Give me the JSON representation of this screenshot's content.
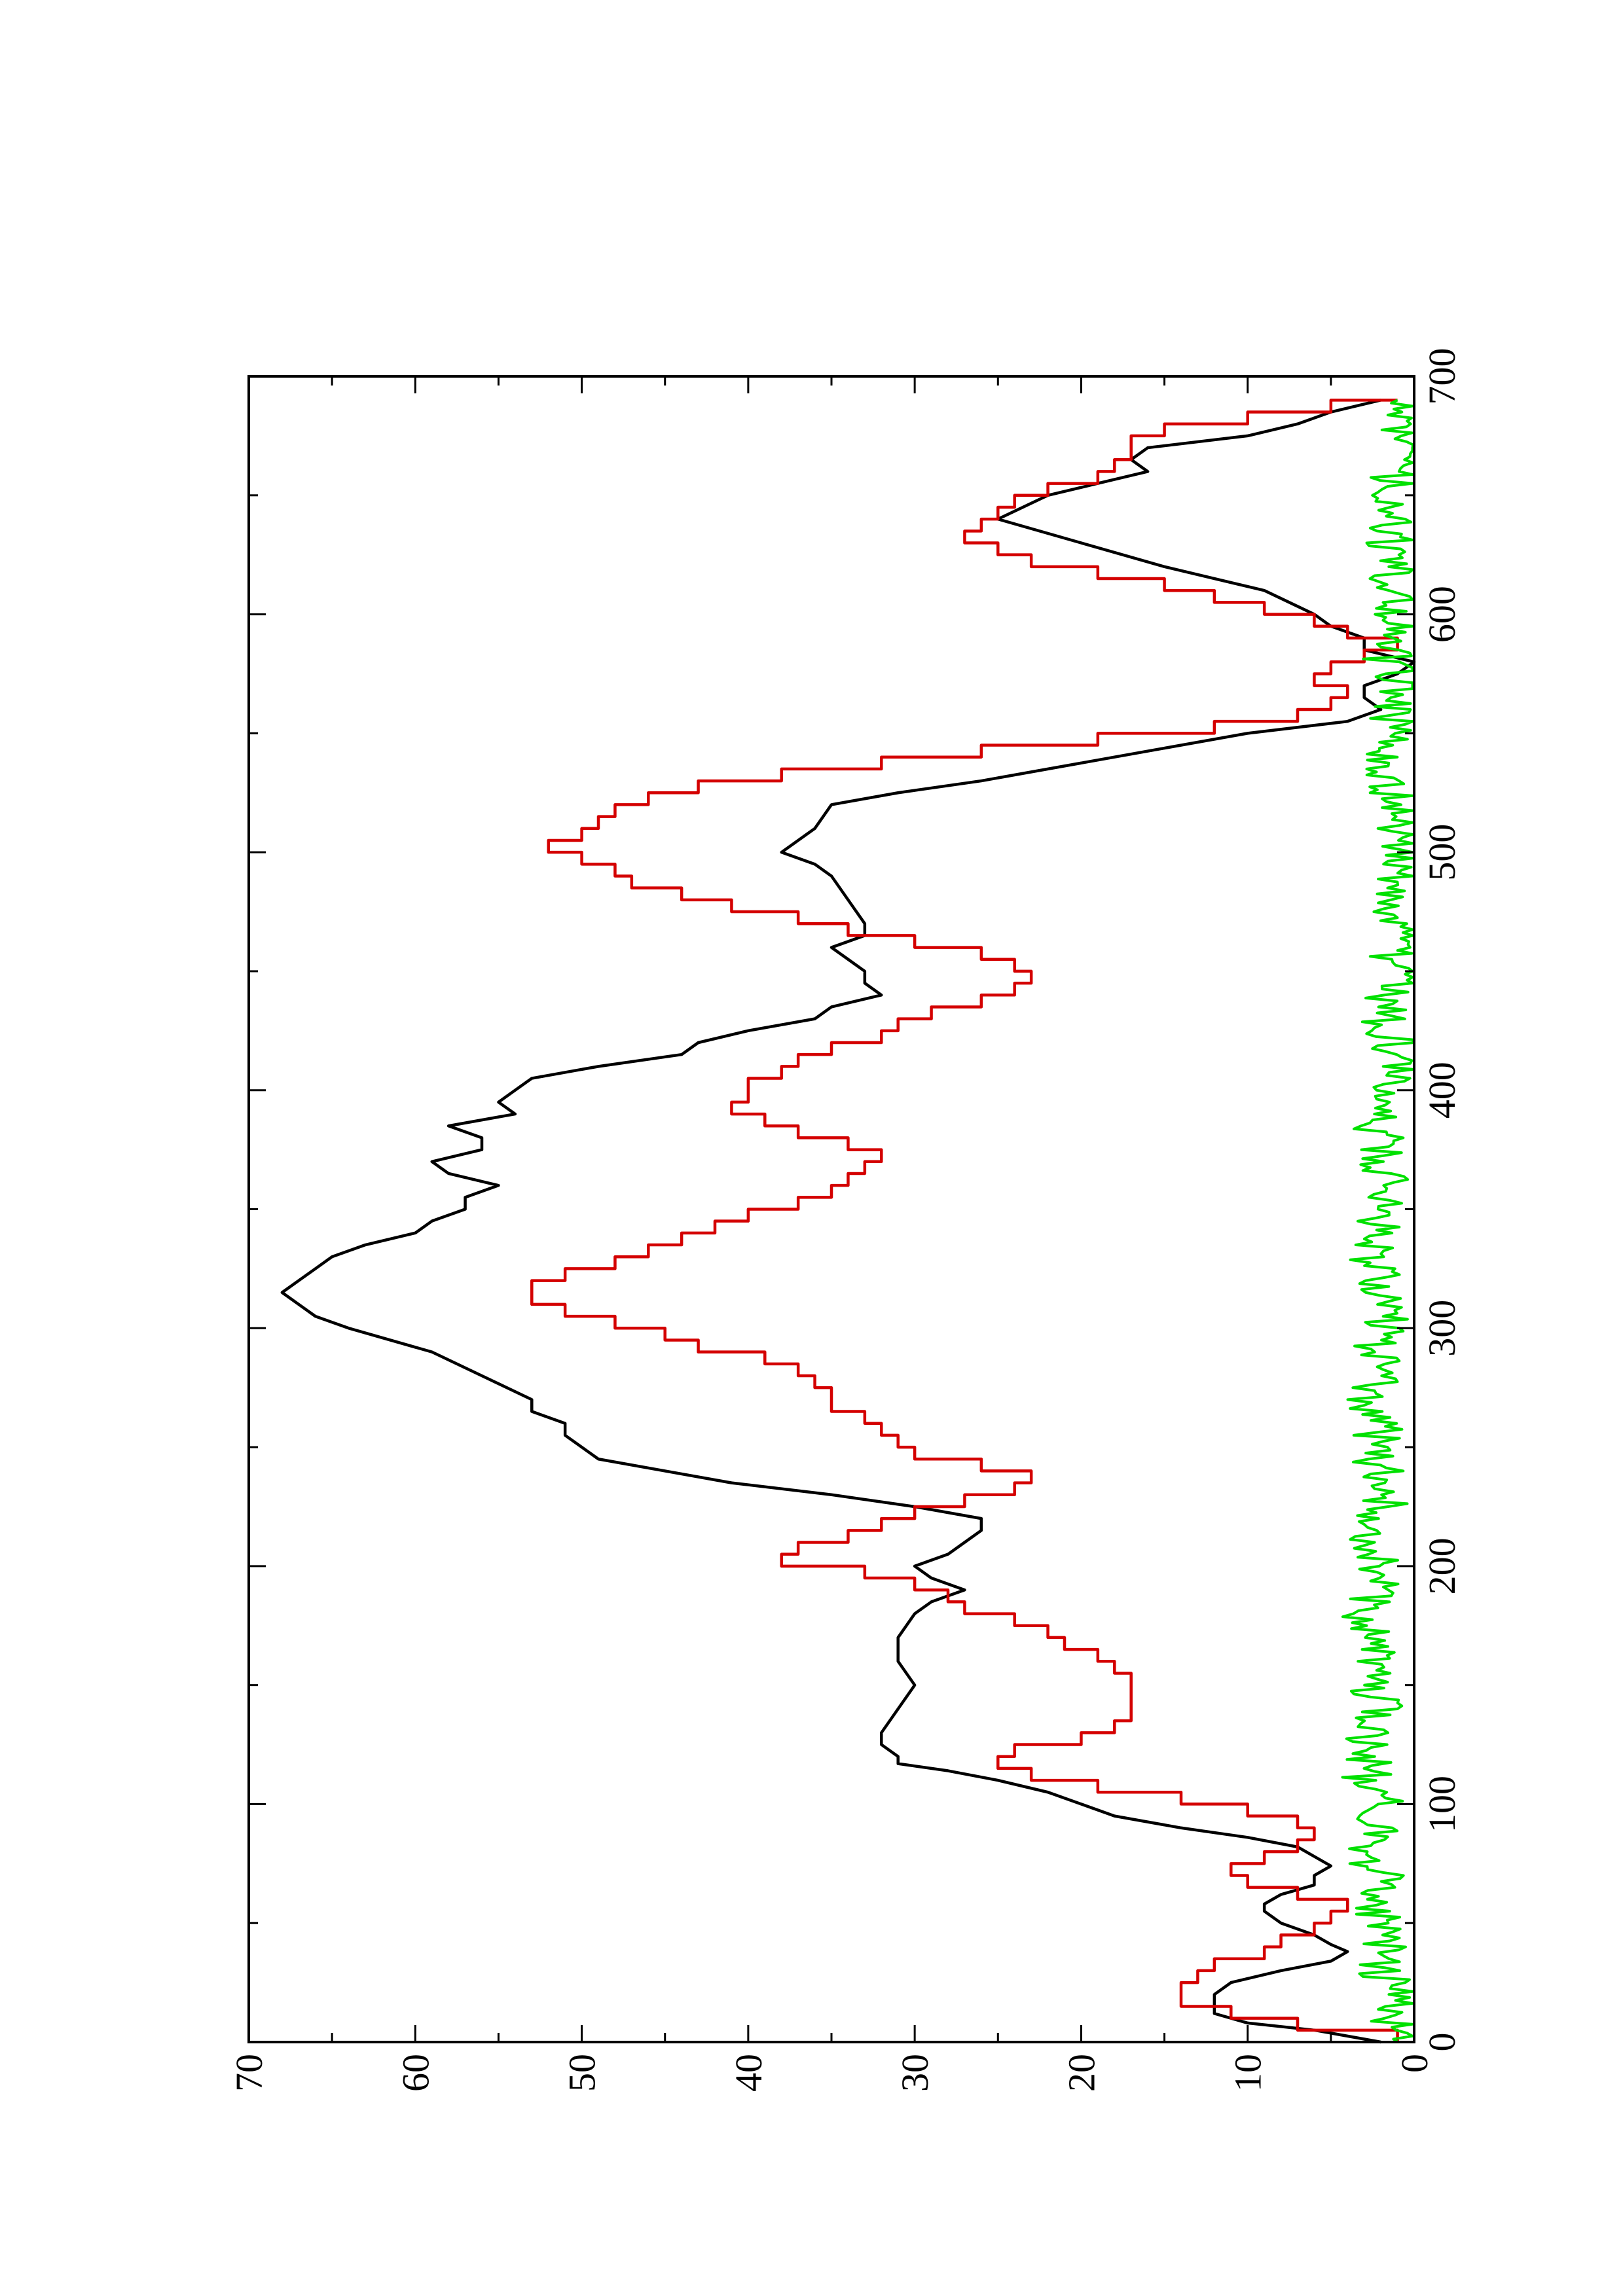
{
  "chart_data": {
    "type": "line",
    "title": "",
    "xlabel": "",
    "ylabel": "",
    "xlim": [
      0,
      700
    ],
    "ylim": [
      0,
      70
    ],
    "x_ticks": [
      0,
      100,
      200,
      300,
      400,
      500,
      600,
      700
    ],
    "y_ticks": [
      0,
      10,
      20,
      30,
      40,
      50,
      60,
      70
    ],
    "grid": false,
    "legend": "none",
    "orientation": "rotated 90 degrees counter-clockwise on the page",
    "series": [
      {
        "color": "#000000",
        "style": "smooth",
        "x": [
          0,
          5,
          8,
          12,
          15,
          20,
          25,
          30,
          34,
          38,
          41,
          45,
          50,
          55,
          58,
          62,
          66,
          70,
          74,
          78,
          82,
          86,
          90,
          95,
          100,
          105,
          110,
          114,
          117,
          120,
          125,
          130,
          140,
          150,
          160,
          170,
          180,
          185,
          190,
          195,
          200,
          205,
          210,
          215,
          220,
          225,
          230,
          235,
          240,
          245,
          250,
          255,
          260,
          265,
          270,
          280,
          290,
          300,
          305,
          310,
          315,
          320,
          325,
          330,
          335,
          340,
          345,
          350,
          355,
          360,
          365,
          370,
          375,
          380,
          385,
          390,
          395,
          400,
          405,
          410,
          415,
          420,
          425,
          430,
          435,
          440,
          445,
          450,
          455,
          460,
          465,
          470,
          480,
          490,
          495,
          500,
          510,
          520,
          525,
          530,
          540,
          550,
          555,
          560,
          565,
          570,
          575,
          580,
          585,
          590,
          595,
          600,
          610,
          620,
          630,
          640,
          650,
          655,
          660,
          665,
          670,
          675,
          680,
          685,
          690
        ],
        "y": [
          2,
          6,
          10,
          12,
          12,
          12,
          11,
          8,
          5,
          4,
          5,
          6,
          8,
          9,
          9,
          8,
          6,
          6,
          5,
          6,
          7,
          10,
          14,
          18,
          20,
          22,
          25,
          28,
          31,
          31,
          32,
          32,
          31,
          30,
          31,
          31,
          30,
          29,
          27,
          29,
          30,
          28,
          27,
          26,
          26,
          30,
          35,
          41,
          45,
          49,
          50,
          51,
          51,
          53,
          53,
          56,
          59,
          64,
          66,
          67,
          68,
          67,
          66,
          65,
          63,
          60,
          59,
          57,
          57,
          55,
          58,
          59,
          56,
          56,
          58,
          54,
          55,
          54,
          53,
          49,
          44,
          43,
          40,
          36,
          35,
          32,
          33,
          33,
          34,
          35,
          33,
          33,
          34,
          35,
          36,
          38,
          36,
          35,
          31,
          26,
          18,
          10,
          4,
          2,
          3,
          3,
          1,
          0,
          3,
          3,
          5,
          6,
          9,
          15,
          20,
          25,
          22,
          19,
          16,
          17,
          16,
          10,
          7,
          5,
          2
        ]
      },
      {
        "color": "#d40000",
        "style": "step",
        "x": [
          0,
          5,
          10,
          15,
          20,
          25,
          30,
          35,
          40,
          45,
          50,
          55,
          60,
          65,
          70,
          75,
          80,
          85,
          90,
          95,
          100,
          105,
          110,
          115,
          120,
          125,
          130,
          135,
          140,
          145,
          150,
          155,
          160,
          165,
          170,
          175,
          180,
          185,
          190,
          195,
          200,
          205,
          210,
          215,
          220,
          225,
          230,
          235,
          240,
          245,
          250,
          255,
          260,
          265,
          270,
          275,
          280,
          285,
          290,
          295,
          300,
          305,
          310,
          315,
          320,
          325,
          330,
          335,
          340,
          345,
          350,
          355,
          360,
          365,
          370,
          375,
          380,
          385,
          390,
          395,
          400,
          405,
          410,
          415,
          420,
          425,
          430,
          435,
          440,
          445,
          450,
          455,
          460,
          465,
          470,
          475,
          480,
          485,
          490,
          495,
          500,
          505,
          510,
          515,
          520,
          525,
          530,
          535,
          540,
          545,
          550,
          555,
          560,
          565,
          570,
          575,
          580,
          585,
          590,
          595,
          600,
          605,
          610,
          615,
          620,
          625,
          630,
          635,
          640,
          645,
          650,
          655,
          660,
          665,
          670,
          675,
          680,
          685,
          690
        ],
        "y": [
          1,
          7,
          11,
          14,
          14,
          13,
          12,
          9,
          8,
          6,
          5,
          4,
          7,
          10,
          11,
          9,
          7,
          6,
          7,
          10,
          14,
          19,
          23,
          25,
          24,
          20,
          18,
          17,
          17,
          17,
          17,
          18,
          19,
          21,
          22,
          24,
          27,
          28,
          30,
          33,
          38,
          37,
          34,
          32,
          30,
          27,
          24,
          23,
          26,
          30,
          31,
          32,
          33,
          35,
          35,
          36,
          37,
          39,
          43,
          45,
          48,
          51,
          53,
          53,
          51,
          48,
          46,
          44,
          42,
          40,
          37,
          35,
          34,
          33,
          32,
          34,
          37,
          39,
          41,
          40,
          40,
          38,
          37,
          35,
          32,
          31,
          29,
          26,
          24,
          23,
          24,
          26,
          30,
          34,
          37,
          41,
          44,
          47,
          48,
          50,
          52,
          50,
          49,
          48,
          46,
          43,
          38,
          32,
          26,
          19,
          12,
          7,
          5,
          4,
          6,
          5,
          3,
          1,
          4,
          6,
          9,
          12,
          15,
          19,
          23,
          25,
          27,
          26,
          25,
          24,
          22,
          19,
          18,
          17,
          17,
          15,
          10,
          5,
          1
        ]
      },
      {
        "color": "#00e000",
        "style": "noise",
        "x": [
          0,
          10,
          20,
          30,
          40,
          50,
          60,
          70,
          80,
          90,
          100,
          110,
          120,
          130,
          140,
          150,
          160,
          170,
          180,
          190,
          200,
          210,
          220,
          230,
          240,
          250,
          260,
          270,
          280,
          290,
          300,
          310,
          320,
          330,
          340,
          350,
          360,
          370,
          380,
          390,
          400,
          410,
          420,
          430,
          440,
          450,
          460,
          470,
          480,
          490,
          500,
          510,
          520,
          530,
          540,
          550,
          560,
          570,
          580,
          590,
          600,
          610,
          620,
          630,
          640,
          650,
          660,
          670,
          680,
          690
        ],
        "y": [
          1,
          1.5,
          1,
          2,
          1.5,
          2,
          2.5,
          2,
          3,
          2,
          2,
          3,
          2.5,
          3,
          2,
          3,
          2.5,
          3,
          3,
          2.5,
          2,
          2.5,
          2,
          1.5,
          2,
          2.5,
          2,
          3,
          2,
          2.5,
          2,
          1.5,
          2,
          2.5,
          2,
          2,
          1.5,
          2,
          2,
          2.5,
          2,
          1.5,
          1,
          2,
          1.5,
          1,
          1.5,
          1,
          1.5,
          1,
          1,
          1.5,
          1,
          1.5,
          2,
          1.5,
          1,
          1,
          1.5,
          2,
          1,
          1.5,
          1,
          1.5,
          1,
          1.5,
          1,
          1,
          1.5,
          1
        ]
      }
    ]
  }
}
